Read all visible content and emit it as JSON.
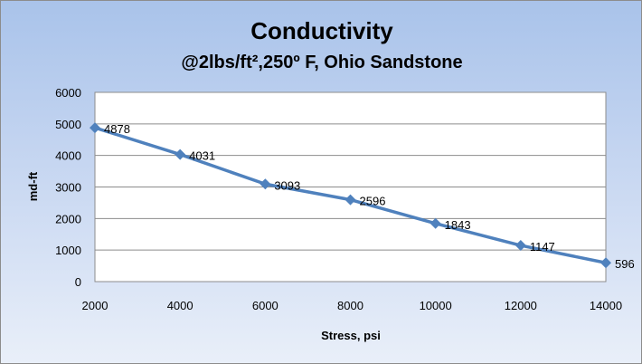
{
  "chart_data": {
    "type": "line",
    "title": "Conductivity",
    "subtitle": "@2lbs/ft²,250º F, Ohio Sandstone",
    "xlabel": "Stress, psi",
    "ylabel": "md-ft",
    "x": [
      2000,
      4000,
      6000,
      8000,
      10000,
      12000,
      14000
    ],
    "series": [
      {
        "values": [
          4878,
          4031,
          3093,
          2596,
          1843,
          1147,
          596
        ]
      }
    ],
    "data_labels": [
      "4878",
      "4031",
      "3093",
      "2596",
      "1843",
      "1147",
      "596"
    ],
    "x_ticks": [
      "2000",
      "4000",
      "6000",
      "8000",
      "10000",
      "12000",
      "14000"
    ],
    "y_ticks": [
      "0",
      "1000",
      "2000",
      "3000",
      "4000",
      "5000",
      "6000"
    ],
    "xlim": [
      2000,
      14000
    ],
    "ylim": [
      0,
      6000
    ],
    "grid": "horizontal",
    "legend": "none",
    "colors": {
      "series": "#4f81bd",
      "plot_background": "#ffffff",
      "chart_background": "#b8cdee",
      "gridline": "#8c8c8c"
    }
  }
}
